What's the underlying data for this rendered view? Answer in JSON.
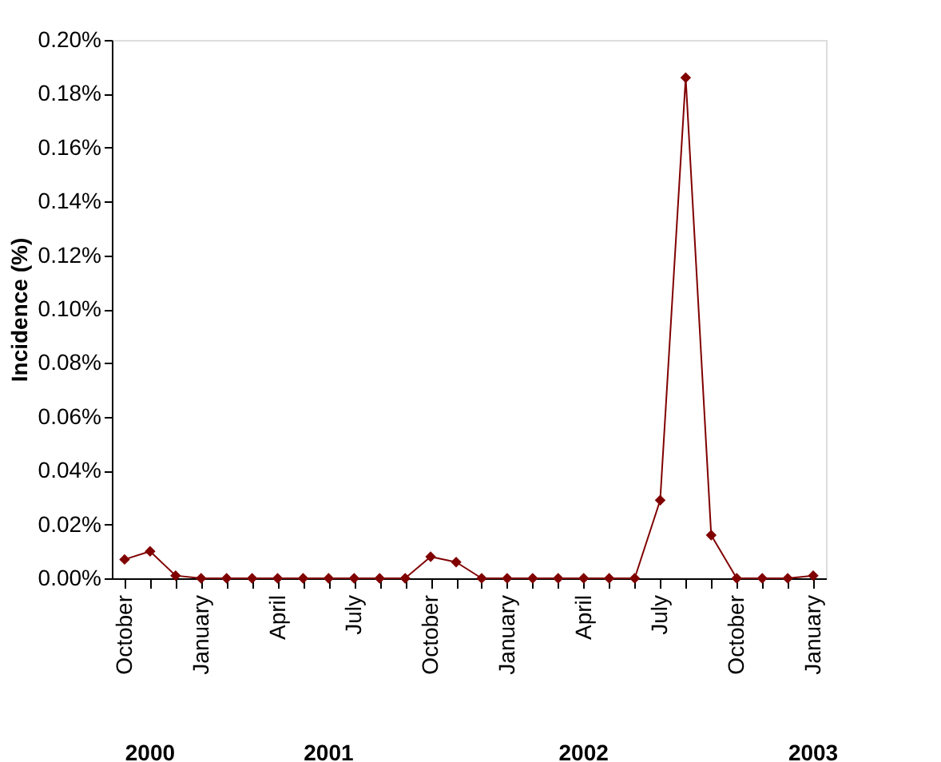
{
  "chart_data": {
    "type": "line",
    "ylabel": "Incidence (%)",
    "categories": [
      "October",
      null,
      null,
      "January",
      null,
      null,
      "April",
      null,
      null,
      "July",
      null,
      null,
      "October",
      null,
      null,
      "January",
      null,
      null,
      "April",
      null,
      null,
      "July",
      null,
      null,
      "October",
      null,
      null,
      "January"
    ],
    "series": [
      {
        "color": "#800000",
        "values": [
          0.007,
          0.01,
          0.001,
          0,
          0,
          0,
          0,
          0,
          0,
          0,
          0,
          0,
          0.008,
          0.006,
          0,
          0,
          0,
          0,
          0,
          0,
          0,
          0.029,
          0.186,
          0.016,
          0,
          0,
          0,
          0.001
        ]
      }
    ],
    "ylim": [
      0,
      0.2
    ],
    "yticks": [
      {
        "value": 0,
        "label": "0.00%"
      },
      {
        "value": 0.02,
        "label": "0.02%"
      },
      {
        "value": 0.04,
        "label": "0.04%"
      },
      {
        "value": 0.06,
        "label": "0.06%"
      },
      {
        "value": 0.08,
        "label": "0.08%"
      },
      {
        "value": 0.1,
        "label": "0.10%"
      },
      {
        "value": 0.12,
        "label": "0.12%"
      },
      {
        "value": 0.14,
        "label": "0.14%"
      },
      {
        "value": 0.16,
        "label": "0.16%"
      },
      {
        "value": 0.18,
        "label": "0.18%"
      },
      {
        "value": 0.2,
        "label": "0.20%"
      }
    ],
    "annotations": [
      "2000",
      "2001",
      "2002",
      "2003"
    ],
    "marker": "diamond",
    "line_style": "solid",
    "grid": false
  }
}
